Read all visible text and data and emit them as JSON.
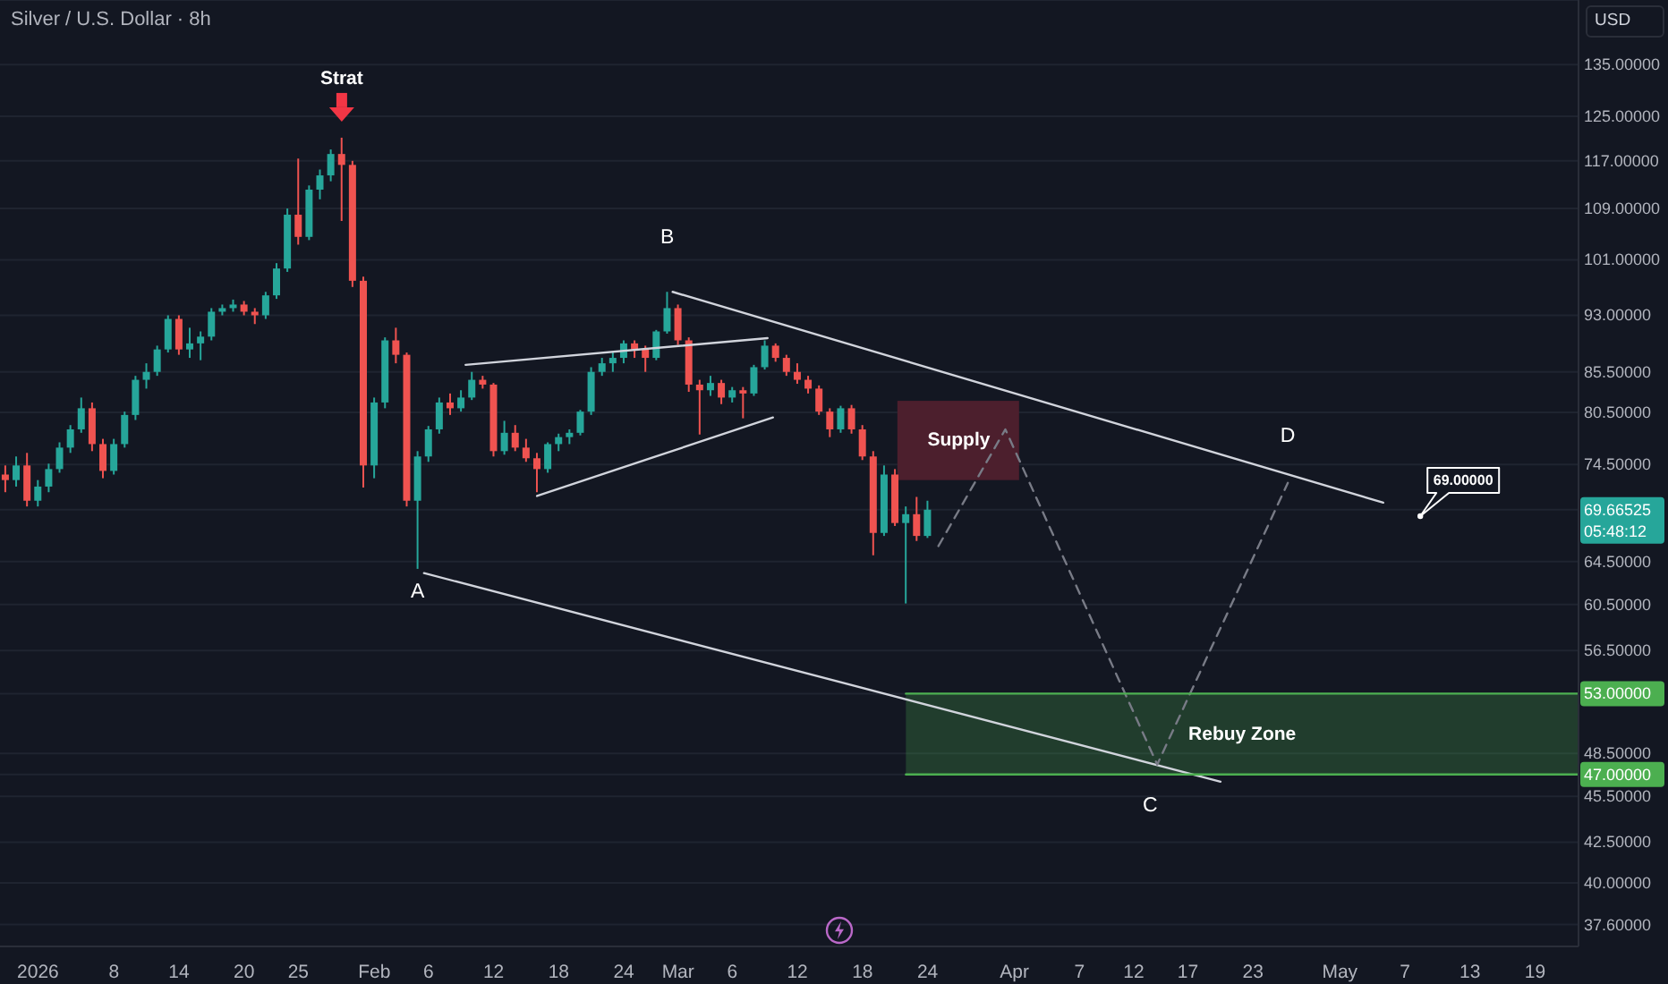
{
  "chart_data": {
    "type": "candlestick",
    "title": "Silver / U.S. Dollar · 8h",
    "ylabel": "USD",
    "x": [
      "2025-12-29",
      "2025-12-30",
      "2025-12-31",
      "2026-01-01",
      "2026-01-02",
      "2026-01-03",
      "2026-01-04",
      "2026-01-05",
      "2026-01-06",
      "2026-01-07",
      "2026-01-08",
      "2026-01-09",
      "2026-01-10",
      "2026-01-11",
      "2026-01-12",
      "2026-01-13",
      "2026-01-14",
      "2026-01-15",
      "2026-01-16",
      "2026-01-17",
      "2026-01-18",
      "2026-01-19",
      "2026-01-20",
      "2026-01-21",
      "2026-01-22",
      "2026-01-23",
      "2026-01-24",
      "2026-01-25",
      "2026-01-26",
      "2026-01-27",
      "2026-01-28",
      "2026-01-29",
      "2026-01-30",
      "2026-01-31",
      "2026-02-01",
      "2026-02-02",
      "2026-02-03",
      "2026-02-04",
      "2026-02-05",
      "2026-02-06",
      "2026-02-07",
      "2026-02-08",
      "2026-02-09",
      "2026-02-10",
      "2026-02-11",
      "2026-02-12",
      "2026-02-13",
      "2026-02-14",
      "2026-02-15",
      "2026-02-16",
      "2026-02-17",
      "2026-02-18",
      "2026-02-19",
      "2026-02-20",
      "2026-02-21",
      "2026-02-22",
      "2026-02-23",
      "2026-02-24",
      "2026-02-25",
      "2026-02-26",
      "2026-02-27",
      "2026-02-28",
      "2026-03-01",
      "2026-03-02",
      "2026-03-03",
      "2026-03-04",
      "2026-03-05",
      "2026-03-06",
      "2026-03-07",
      "2026-03-08",
      "2026-03-09",
      "2026-03-10",
      "2026-03-11",
      "2026-03-12",
      "2026-03-13",
      "2026-03-14",
      "2026-03-15",
      "2026-03-16",
      "2026-03-17",
      "2026-03-18",
      "2026-03-19",
      "2026-03-20",
      "2026-03-21",
      "2026-03-22",
      "2026-03-23",
      "2026-03-24"
    ],
    "ohlc": [
      [
        73.4,
        74.4,
        71.5,
        72.8
      ],
      [
        72.8,
        75.4,
        72.1,
        74.4
      ],
      [
        74.4,
        75.8,
        70.0,
        70.6
      ],
      [
        70.6,
        72.8,
        70.0,
        72.1
      ],
      [
        72.1,
        74.6,
        71.5,
        74.0
      ],
      [
        74.0,
        77.0,
        73.6,
        76.4
      ],
      [
        76.4,
        79.0,
        75.8,
        78.5
      ],
      [
        78.5,
        82.3,
        78.1,
        81.0
      ],
      [
        81.0,
        81.7,
        76.0,
        76.8
      ],
      [
        76.8,
        77.4,
        73.0,
        73.8
      ],
      [
        73.8,
        77.4,
        73.4,
        76.8
      ],
      [
        76.8,
        80.6,
        76.4,
        80.2
      ],
      [
        80.2,
        85.0,
        79.6,
        84.5
      ],
      [
        84.5,
        86.6,
        83.4,
        85.5
      ],
      [
        85.5,
        88.9,
        85.0,
        88.4
      ],
      [
        88.4,
        93.0,
        88.0,
        92.5
      ],
      [
        92.5,
        93.0,
        87.7,
        88.4
      ],
      [
        88.4,
        91.3,
        87.3,
        89.2
      ],
      [
        89.2,
        90.8,
        87.0,
        90.1
      ],
      [
        90.1,
        94.0,
        89.6,
        93.5
      ],
      [
        93.5,
        94.5,
        93.0,
        94.0
      ],
      [
        94.0,
        95.2,
        93.5,
        94.5
      ],
      [
        94.5,
        95.0,
        93.0,
        93.5
      ],
      [
        93.5,
        94.0,
        91.8,
        93.0
      ],
      [
        93.0,
        96.3,
        92.5,
        95.8
      ],
      [
        95.8,
        100.5,
        95.3,
        99.7
      ],
      [
        99.7,
        109.0,
        99.2,
        108.0
      ],
      [
        108.0,
        117.4,
        103.3,
        104.5
      ],
      [
        104.5,
        112.8,
        104.0,
        112.1
      ],
      [
        112.1,
        115.5,
        110.5,
        114.5
      ],
      [
        114.5,
        119.0,
        113.5,
        118.2
      ],
      [
        118.2,
        121.1,
        107.0,
        116.3
      ],
      [
        116.3,
        117.0,
        97.0,
        97.9
      ],
      [
        97.9,
        98.5,
        72.0,
        74.4
      ],
      [
        74.4,
        82.3,
        73.0,
        81.7
      ],
      [
        81.7,
        90.0,
        81.0,
        89.6
      ],
      [
        89.6,
        91.3,
        86.6,
        87.7
      ],
      [
        87.7,
        88.0,
        70.0,
        70.6
      ],
      [
        70.6,
        76.0,
        63.8,
        75.4
      ],
      [
        75.4,
        78.9,
        74.8,
        78.5
      ],
      [
        78.5,
        82.3,
        78.0,
        81.7
      ],
      [
        81.7,
        82.8,
        80.2,
        81.0
      ],
      [
        81.0,
        83.2,
        80.6,
        82.3
      ],
      [
        82.3,
        85.5,
        82.0,
        84.5
      ],
      [
        84.5,
        85.0,
        83.4,
        83.9
      ],
      [
        83.9,
        84.1,
        75.4,
        76.0
      ],
      [
        76.0,
        79.5,
        75.6,
        78.1
      ],
      [
        78.1,
        79.0,
        76.0,
        76.4
      ],
      [
        76.4,
        77.4,
        74.8,
        75.2
      ],
      [
        75.2,
        75.8,
        71.5,
        74.0
      ],
      [
        74.0,
        77.0,
        73.6,
        76.8
      ],
      [
        76.8,
        78.0,
        76.0,
        77.6
      ],
      [
        77.6,
        78.5,
        76.8,
        78.1
      ],
      [
        78.1,
        80.8,
        77.8,
        80.6
      ],
      [
        80.6,
        86.1,
        80.2,
        85.5
      ],
      [
        85.5,
        87.3,
        85.0,
        86.6
      ],
      [
        86.6,
        88.0,
        85.5,
        87.3
      ],
      [
        87.3,
        89.6,
        86.6,
        89.2
      ],
      [
        89.2,
        89.6,
        87.3,
        88.4
      ],
      [
        88.4,
        88.9,
        85.5,
        87.3
      ],
      [
        87.3,
        91.0,
        87.0,
        90.8
      ],
      [
        90.8,
        96.3,
        90.5,
        94.0
      ],
      [
        94.0,
        94.5,
        89.0,
        89.6
      ],
      [
        89.6,
        90.0,
        83.0,
        83.9
      ],
      [
        83.9,
        84.5,
        77.9,
        83.2
      ],
      [
        83.2,
        85.0,
        82.5,
        84.1
      ],
      [
        84.1,
        84.5,
        81.5,
        82.3
      ],
      [
        82.3,
        83.6,
        81.7,
        83.2
      ],
      [
        83.2,
        83.6,
        79.8,
        82.8
      ],
      [
        82.8,
        86.4,
        82.5,
        86.1
      ],
      [
        86.1,
        89.6,
        85.8,
        88.9
      ],
      [
        88.9,
        89.2,
        86.8,
        87.3
      ],
      [
        87.3,
        87.7,
        85.0,
        85.5
      ],
      [
        85.5,
        86.6,
        84.0,
        84.5
      ],
      [
        84.5,
        85.0,
        82.8,
        83.4
      ],
      [
        83.4,
        83.8,
        80.2,
        80.6
      ],
      [
        80.6,
        81.0,
        77.6,
        78.5
      ],
      [
        78.5,
        81.3,
        78.1,
        81.0
      ],
      [
        81.0,
        81.4,
        78.0,
        78.5
      ],
      [
        78.5,
        79.0,
        75.0,
        75.4
      ],
      [
        75.4,
        76.0,
        65.1,
        67.3
      ],
      [
        67.3,
        74.4,
        67.0,
        73.4
      ],
      [
        73.4,
        74.0,
        68.0,
        68.3
      ],
      [
        68.3,
        70.0,
        60.6,
        69.2
      ],
      [
        69.2,
        71.0,
        66.5,
        67.0
      ],
      [
        67.0,
        70.6,
        66.8,
        69.66525
      ]
    ],
    "colors": [
      "#ef5350",
      "#26a69a",
      "#ef5350",
      "#26a69a",
      "#26a69a",
      "#26a69a",
      "#26a69a",
      "#26a69a",
      "#ef5350",
      "#ef5350",
      "#26a69a",
      "#26a69a",
      "#26a69a",
      "#26a69a",
      "#26a69a",
      "#26a69a",
      "#ef5350",
      "#26a69a",
      "#26a69a",
      "#26a69a",
      "#26a69a",
      "#26a69a",
      "#ef5350",
      "#ef5350",
      "#26a69a",
      "#26a69a",
      "#26a69a",
      "#ef5350",
      "#26a69a",
      "#26a69a",
      "#26a69a",
      "#ef5350",
      "#ef5350",
      "#ef5350",
      "#26a69a",
      "#26a69a",
      "#ef5350",
      "#ef5350",
      "#26a69a",
      "#26a69a",
      "#26a69a",
      "#ef5350",
      "#26a69a",
      "#26a69a",
      "#ef5350",
      "#ef5350",
      "#26a69a",
      "#ef5350",
      "#ef5350",
      "#ef5350",
      "#26a69a",
      "#26a69a",
      "#26a69a",
      "#26a69a",
      "#26a69a",
      "#26a69a",
      "#26a69a",
      "#26a69a",
      "#ef5350",
      "#ef5350",
      "#26a69a",
      "#26a69a",
      "#ef5350",
      "#ef5350",
      "#ef5350",
      "#26a69a",
      "#ef5350",
      "#26a69a",
      "#ef5350",
      "#26a69a",
      "#26a69a",
      "#ef5350",
      "#ef5350",
      "#ef5350",
      "#ef5350",
      "#ef5350",
      "#ef5350",
      "#26a69a",
      "#ef5350",
      "#ef5350",
      "#ef5350",
      "#26a69a",
      "#ef5350",
      "#26a69a",
      "#ef5350",
      "#26a69a"
    ],
    "series": [
      {
        "type": "line",
        "color": "#d1d4dc",
        "x": [
          "2026-02-28T12:00",
          "2026-05-05"
        ],
        "values": [
          96.3,
          70.4
        ]
      },
      {
        "type": "line",
        "color": "#d1d4dc",
        "x": [
          "2026-02-05T14:00",
          "2026-04-20"
        ],
        "values": [
          63.4,
          46.5
        ]
      },
      {
        "type": "line",
        "color": "#d1d4dc",
        "x": [
          "2026-02-09T10:00",
          "2026-03-09T06:00"
        ],
        "values": [
          86.4,
          89.9
        ]
      },
      {
        "type": "line",
        "color": "#d1d4dc",
        "x": [
          "2026-02-16",
          "2026-03-09T18:00"
        ],
        "values": [
          71.1,
          79.9
        ]
      },
      {
        "type": "line",
        "color": "#787b86",
        "line_style": "dashed",
        "x": [
          "2026-03-25",
          "2026-03-31T04:00",
          "2026-04-14T04:00",
          "2026-04-26T05:00"
        ],
        "values": [
          66.0,
          78.5,
          47.7,
          72.5
        ]
      },
      {
        "type": "bar",
        "name": "Supply",
        "color": "#4c1f2d",
        "x": [
          "2026-03-26T21:00"
        ],
        "base": [
          72.8
        ],
        "values": [
          9.1
        ]
      },
      {
        "type": "line",
        "name": "Rebuy Zone",
        "color": "#4caf50",
        "x": [
          "2026-03-22",
          "2026-05-23"
        ],
        "values": [
          53,
          53
        ],
        "lower": [
          47,
          47
        ],
        "upper": [
          53,
          53
        ]
      },
      {
        "type": "line",
        "color": "#4caf50",
        "x": [
          "2026-03-22",
          "2026-05-23"
        ],
        "values": [
          47,
          47
        ]
      }
    ],
    "xlim": [
      "2025-12-28T12:00",
      "2026-05-23"
    ],
    "xticks": [
      {
        "value": "2026-01-01",
        "label": "2026"
      },
      {
        "value": "2026-01-08",
        "label": "8"
      },
      {
        "value": "2026-01-14",
        "label": "14"
      },
      {
        "value": "2026-01-20",
        "label": "20"
      },
      {
        "value": "2026-01-25",
        "label": "25"
      },
      {
        "value": "2026-02-01",
        "label": "Feb"
      },
      {
        "value": "2026-02-06",
        "label": "6"
      },
      {
        "value": "2026-02-12",
        "label": "12"
      },
      {
        "value": "2026-02-18",
        "label": "18"
      },
      {
        "value": "2026-02-24",
        "label": "24"
      },
      {
        "value": "2026-03-01",
        "label": "Mar"
      },
      {
        "value": "2026-03-06",
        "label": "6"
      },
      {
        "value": "2026-03-12",
        "label": "12"
      },
      {
        "value": "2026-03-18",
        "label": "18"
      },
      {
        "value": "2026-03-24",
        "label": "24"
      },
      {
        "value": "2026-04-01",
        "label": "Apr"
      },
      {
        "value": "2026-04-07",
        "label": "7"
      },
      {
        "value": "2026-04-12",
        "label": "12"
      },
      {
        "value": "2026-04-17",
        "label": "17"
      },
      {
        "value": "2026-04-23",
        "label": "23"
      },
      {
        "value": "2026-05-01",
        "label": "May"
      },
      {
        "value": "2026-05-07",
        "label": "7"
      },
      {
        "value": "2026-05-13",
        "label": "13"
      },
      {
        "value": "2026-05-19",
        "label": "19"
      }
    ],
    "ylim": [
      36.4,
      148.6
    ],
    "yticks": [
      {
        "value": 135,
        "label": "135.00000"
      },
      {
        "value": 125,
        "label": "125.00000"
      },
      {
        "value": 117,
        "label": "117.00000"
      },
      {
        "value": 109,
        "label": "109.00000"
      },
      {
        "value": 101,
        "label": "101.00000"
      },
      {
        "value": 93,
        "label": "93.00000"
      },
      {
        "value": 85.5,
        "label": "85.50000"
      },
      {
        "value": 80.5,
        "label": "80.50000"
      },
      {
        "value": 74.5,
        "label": "74.50000"
      },
      69.66525,
      {
        "value": 64.5,
        "label": "64.50000"
      },
      {
        "value": 60.5,
        "label": "60.50000"
      },
      {
        "value": 56.5,
        "label": "56.50000"
      },
      {
        "value": 53,
        "label": "53.00000"
      },
      {
        "value": 48.5,
        "label": "48.50000"
      },
      {
        "value": 47,
        "label": "47.00000"
      },
      {
        "value": 45.5,
        "label": "45.50000"
      },
      {
        "value": 42.5,
        "label": "42.50000"
      },
      {
        "value": 40,
        "label": "40.00000"
      },
      {
        "value": 37.6,
        "label": "37.60000"
      }
    ],
    "log": true,
    "grid": "y",
    "annotations": [
      {
        "text": "Strat",
        "x": "2026-01-29",
        "y": 121.1
      },
      {
        "text": "A",
        "x": "2026-02-05",
        "y": 63.8
      },
      {
        "text": "B",
        "x": "2026-02-28",
        "y": 96.3
      },
      {
        "text": "C",
        "x": "2026-04-14T04:00",
        "y": 47.7
      },
      {
        "text": "D",
        "x": "2026-04-26T05:00",
        "y": 72.5
      },
      {
        "text": "69.00000",
        "x": "2026-05-08T10:00",
        "y": 69
      },
      "05:48:12"
    ]
  }
}
